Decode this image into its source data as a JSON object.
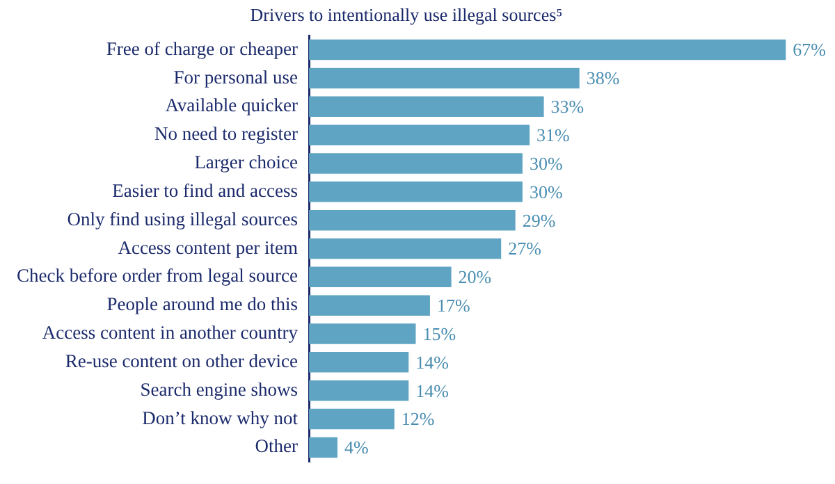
{
  "chart_data": {
    "type": "bar",
    "orientation": "horizontal",
    "title": "Drivers to intentionally use illegal sources⁵",
    "categories": [
      "Free of charge or cheaper",
      "For personal use",
      "Available quicker",
      "No need to register",
      "Larger choice",
      "Easier to find and access",
      "Only find using illegal sources",
      "Access content per item",
      "Check before order from legal source",
      "People around me do this",
      "Access content in another country",
      "Re-use content on other device",
      "Search engine shows",
      "Don’t know why not",
      "Other"
    ],
    "values": [
      67,
      38,
      33,
      31,
      30,
      30,
      29,
      27,
      20,
      17,
      15,
      14,
      14,
      12,
      4
    ],
    "value_labels": [
      "67%",
      "38%",
      "33%",
      "31%",
      "30%",
      "30%",
      "29%",
      "27%",
      "20%",
      "17%",
      "15%",
      "14%",
      "14%",
      "12%",
      "4%"
    ],
    "color": "#5fa5c3",
    "grid": false,
    "legend": false,
    "tick_labels": "y"
  }
}
